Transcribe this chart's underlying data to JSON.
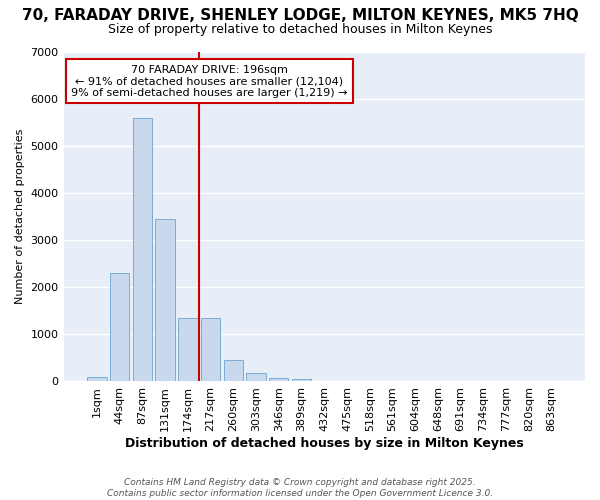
{
  "title": "70, FARADAY DRIVE, SHENLEY LODGE, MILTON KEYNES, MK5 7HQ",
  "subtitle": "Size of property relative to detached houses in Milton Keynes",
  "xlabel": "Distribution of detached houses by size in Milton Keynes",
  "ylabel": "Number of detached properties",
  "categories": [
    "1sqm",
    "44sqm",
    "87sqm",
    "131sqm",
    "174sqm",
    "217sqm",
    "260sqm",
    "303sqm",
    "346sqm",
    "389sqm",
    "432sqm",
    "475sqm",
    "518sqm",
    "561sqm",
    "604sqm",
    "648sqm",
    "691sqm",
    "734sqm",
    "777sqm",
    "820sqm",
    "863sqm"
  ],
  "values": [
    100,
    2300,
    5580,
    3450,
    1350,
    1350,
    450,
    175,
    80,
    50,
    0,
    0,
    0,
    0,
    0,
    0,
    0,
    0,
    0,
    0,
    0
  ],
  "bar_color": "#c8d9ed",
  "bar_edge_color": "#7aadd4",
  "vline_index": 5,
  "vline_color": "#cc0000",
  "annotation_text": "70 FARADAY DRIVE: 196sqm\n← 91% of detached houses are smaller (12,104)\n9% of semi-detached houses are larger (1,219) →",
  "annotation_box_facecolor": "#ffffff",
  "annotation_box_edgecolor": "#cc0000",
  "ylim": [
    0,
    7000
  ],
  "yticks": [
    0,
    1000,
    2000,
    3000,
    4000,
    5000,
    6000,
    7000
  ],
  "plot_bg_color": "#e8eef8",
  "fig_bg_color": "#ffffff",
  "grid_color": "#ffffff",
  "title_fontsize": 11,
  "subtitle_fontsize": 9,
  "xlabel_fontsize": 9,
  "ylabel_fontsize": 8,
  "tick_fontsize": 8,
  "annot_fontsize": 8,
  "footer_text": "Contains HM Land Registry data © Crown copyright and database right 2025.\nContains public sector information licensed under the Open Government Licence 3.0.",
  "footer_fontsize": 6.5
}
